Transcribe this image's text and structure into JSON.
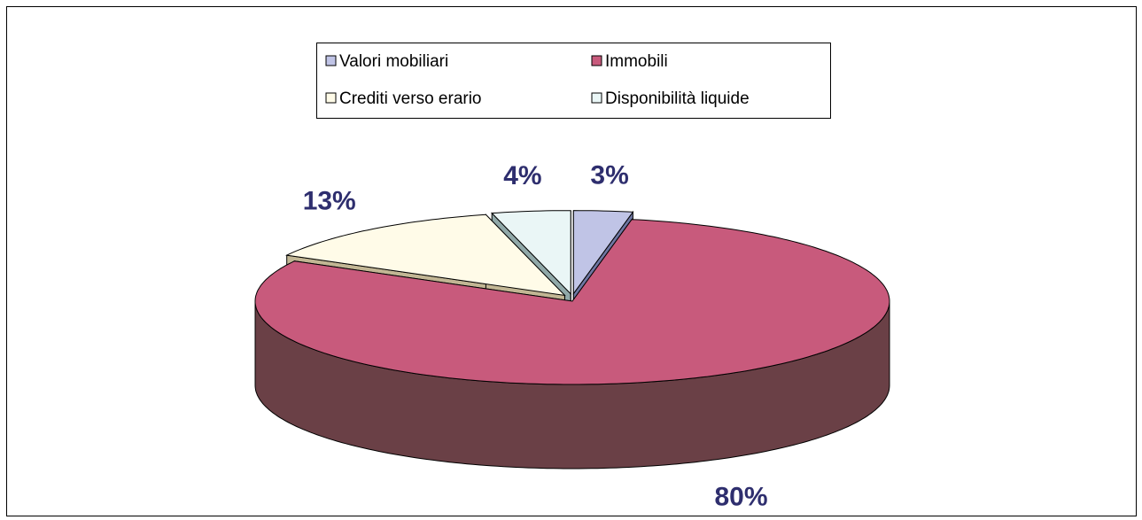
{
  "chart_data": {
    "type": "pie",
    "categories": [
      "Valori mobiliari",
      "Immobili",
      "Crediti verso erario",
      "Disponibilità liquide"
    ],
    "values": [
      3,
      80,
      13,
      4
    ],
    "value_labels": [
      "3%",
      "80%",
      "13%",
      "4%"
    ],
    "colors": [
      "#c0c4e6",
      "#c85a7c",
      "#fffbe8",
      "#eaf6f6"
    ],
    "side_colors": [
      "#6e76a2",
      "#6a4046",
      "#c2b694",
      "#90a8a8"
    ],
    "label_color": "#2e2e6e",
    "legend": "top"
  }
}
